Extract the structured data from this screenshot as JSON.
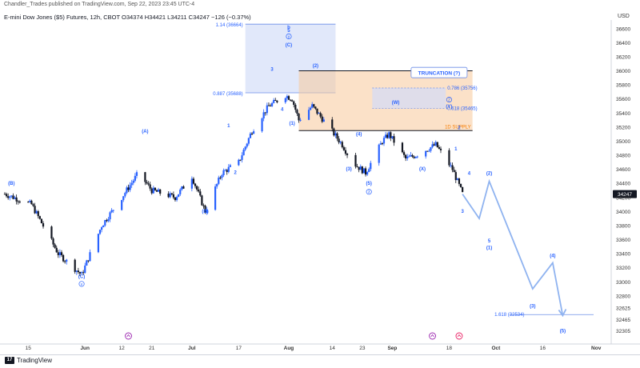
{
  "header": {
    "meta": "Chandler_Trades published on TradingView.com, Sep 22, 2023 23:45 UTC-4",
    "symbol_line": "E-mini Dow Jones ($5) Futures, 12h, CBOT  O34374  H34421  L34211  C34247  −126 (−0.37%)",
    "currency": "USD"
  },
  "footer": {
    "brand": "TradingView",
    "brand_icon": "tradingview-logo-icon"
  },
  "colors": {
    "up": "#2962ff",
    "down": "#131722",
    "wave_label": "#2962ff",
    "supply_zone": "#f7c99b",
    "supply_text": "#f57c00",
    "fib_zone": "#c9d6f5",
    "projection": "#8fb3f0"
  },
  "chart_data": {
    "type": "candlestick",
    "x_axis_labels": [
      "15",
      "Jun",
      "12",
      "21",
      "Jul",
      "17",
      "Aug",
      "14",
      "23",
      "Sep",
      "18",
      "Oct",
      "16",
      "Nov"
    ],
    "y_axis_labels": [
      "36600",
      "36400",
      "36200",
      "36000",
      "35800",
      "35600",
      "35400",
      "35200",
      "35000",
      "34800",
      "34600",
      "34400",
      "34200",
      "34000",
      "33800",
      "33600",
      "33400",
      "33200",
      "33000",
      "32800",
      "32625",
      "32465",
      "32305"
    ],
    "ylim": [
      32150,
      36700
    ],
    "last_price": "34247",
    "anchors": [
      [
        "2023-05-08",
        34250
      ],
      [
        "2023-05-16",
        34100
      ],
      [
        "2023-05-24",
        33400
      ],
      [
        "2023-05-31",
        33100
      ],
      [
        "2023-06-06",
        33800
      ],
      [
        "2023-06-12",
        34200
      ],
      [
        "2023-06-17",
        34550
      ],
      [
        "2023-06-21",
        34300
      ],
      [
        "2023-06-28",
        34200
      ],
      [
        "2023-07-03",
        34500
      ],
      [
        "2023-07-07",
        34000
      ],
      [
        "2023-07-12",
        34550
      ],
      [
        "2023-07-17",
        34700
      ],
      [
        "2023-07-21",
        35150
      ],
      [
        "2023-07-26",
        35500
      ],
      [
        "2023-07-31",
        35650
      ],
      [
        "2023-08-02",
        35600
      ],
      [
        "2023-08-04",
        35300
      ],
      [
        "2023-08-08",
        35500
      ],
      [
        "2023-08-13",
        35200
      ],
      [
        "2023-08-17",
        34950
      ],
      [
        "2023-08-20",
        34700
      ],
      [
        "2023-08-24",
        34550
      ],
      [
        "2023-08-29",
        35000
      ],
      [
        "2023-08-31",
        35100
      ],
      [
        "2023-09-05",
        34750
      ],
      [
        "2023-09-08",
        34800
      ],
      [
        "2023-09-12",
        34900
      ],
      [
        "2023-09-14",
        34950
      ],
      [
        "2023-09-19",
        34600
      ],
      [
        "2023-09-22",
        34250
      ]
    ],
    "projection": [
      [
        "2023-09-22",
        34247
      ],
      [
        "2023-09-27",
        33900
      ],
      [
        "2023-09-30",
        34430
      ],
      [
        "2023-10-13",
        32900
      ],
      [
        "2023-10-19",
        33270
      ],
      [
        "2023-10-22",
        32520
      ]
    ],
    "zones": [
      {
        "name": "fib-zone",
        "from": "2023-07-19",
        "to": "2023-08-15",
        "top": 36664,
        "bottom": 35688,
        "top_label": "1.14 (36664)",
        "bottom_label": "0.887 (35688)"
      },
      {
        "name": "supply-zone",
        "from": "2023-08-04",
        "to": "2023-09-25",
        "top": 36000,
        "bottom": 35150,
        "label": "1D SUPPLY"
      },
      {
        "name": "truncation-box",
        "from": "2023-08-26",
        "to": "2023-09-17",
        "top": 35756,
        "bottom": 35465,
        "top_label": "0.786 (35756)",
        "bottom_label": "0.618 (35465)"
      }
    ],
    "callout": "TRUNCATION (?)",
    "target_line": {
      "price": 32534,
      "label": "1.618 (32534)"
    },
    "wave_labels": [
      {
        "text": "(C)",
        "date": "2023-05-31",
        "price": 33120,
        "below": true
      },
      {
        "text": "(B)",
        "date": "2023-05-10",
        "price": 34380
      },
      {
        "text": "(A)",
        "date": "2023-06-19",
        "price": 35120
      },
      {
        "text": "1",
        "date": "2023-07-14",
        "price": 35200
      },
      {
        "text": "2",
        "date": "2023-07-16",
        "price": 34600,
        "below": true
      },
      {
        "text": "(B)",
        "date": "2023-07-07",
        "price": 34050,
        "below": true
      },
      {
        "text": "3",
        "date": "2023-07-27",
        "price": 36000
      },
      {
        "text": "4",
        "date": "2023-07-30",
        "price": 35500,
        "below": true
      },
      {
        "text": "5",
        "date": "2023-08-01",
        "price": 36550
      },
      {
        "text": "b",
        "date": "2023-08-01",
        "price": 36600
      },
      {
        "text": "(C)",
        "date": "2023-08-01",
        "price": 36350
      },
      {
        "text": "(1)",
        "date": "2023-08-02",
        "price": 35300,
        "below": true
      },
      {
        "text": "(2)",
        "date": "2023-08-09",
        "price": 36050
      },
      {
        "text": "(3)",
        "date": "2023-08-19",
        "price": 34650,
        "below": true
      },
      {
        "text": "(4)",
        "date": "2023-08-22",
        "price": 35080
      },
      {
        "text": "(5)",
        "date": "2023-08-25",
        "price": 34450,
        "below": true
      },
      {
        "text": "(W)",
        "date": "2023-09-02",
        "price": 35530
      },
      {
        "text": "(X)",
        "date": "2023-09-10",
        "price": 34650,
        "below": true
      },
      {
        "text": "(Y)",
        "date": "2023-09-18",
        "price": 35470
      },
      {
        "text": "1",
        "date": "2023-09-20",
        "price": 34870
      },
      {
        "text": "2",
        "date": "2023-09-21",
        "price": 35170
      },
      {
        "text": "3",
        "date": "2023-09-22",
        "price": 34050,
        "below": true
      },
      {
        "text": "4",
        "date": "2023-09-24",
        "price": 34520
      },
      {
        "text": "(2)",
        "date": "2023-09-30",
        "price": 34520
      },
      {
        "text": "5",
        "date": "2023-09-30",
        "price": 33630,
        "below": true
      },
      {
        "text": "(1)",
        "date": "2023-09-30",
        "price": 33530,
        "below": true
      },
      {
        "text": "(3)",
        "date": "2023-10-13",
        "price": 32700,
        "below": true
      },
      {
        "text": "(4)",
        "date": "2023-10-19",
        "price": 33350
      },
      {
        "text": "(5)",
        "date": "2023-10-22",
        "price": 32350,
        "below": true
      }
    ],
    "circle_labels": [
      {
        "text": "v",
        "date": "2023-05-31",
        "price": 32970
      },
      {
        "text": "y",
        "date": "2023-08-01",
        "price": 36490
      },
      {
        "text": "3",
        "date": "2023-08-25",
        "price": 34280
      },
      {
        "text": "2",
        "date": "2023-09-18",
        "price": 35590
      }
    ],
    "event_markers": [
      {
        "icon": "earnings-icon",
        "date": "2023-06-14"
      },
      {
        "icon": "earnings-icon",
        "date": "2023-09-13"
      },
      {
        "icon": "dividend-icon",
        "date": "2023-09-21"
      }
    ]
  }
}
